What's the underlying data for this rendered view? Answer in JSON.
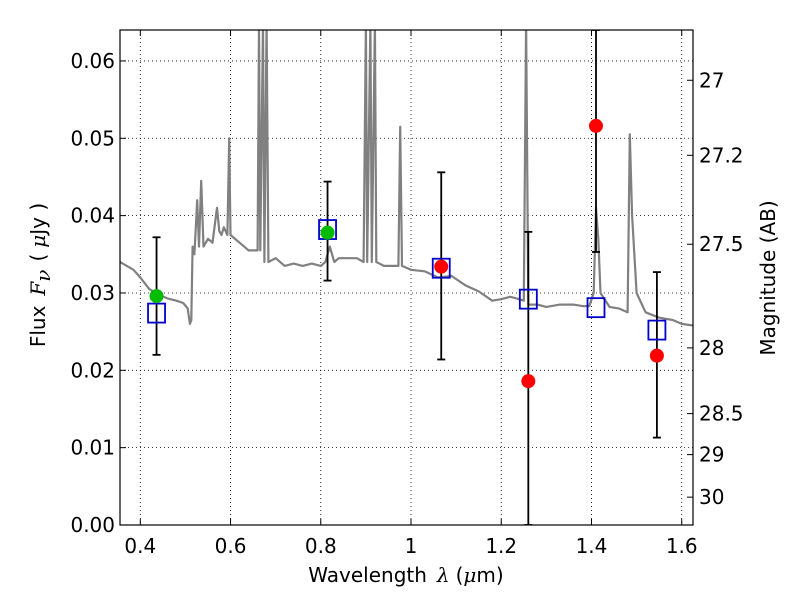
{
  "chart_data": {
    "type": "scatter",
    "xlabel_text": "Wavelength",
    "xlabel_symbol": "λ",
    "xlabel_unit_open": "(",
    "xlabel_unit_mu": "μ",
    "xlabel_unit_rest": "m)",
    "ylabel_text": "Flux",
    "ylabel_symbol": "F",
    "ylabel_subscript": "ν",
    "ylabel_unit_open": "(",
    "ylabel_unit_mu": "μ",
    "ylabel_unit_rest": "Jy )",
    "y2label": "Magnitude (AB)",
    "xlim": [
      0.355,
      1.625
    ],
    "ylim": [
      0.0,
      0.064
    ],
    "grid": true,
    "x_ticks": [
      0.4,
      0.6,
      0.8,
      1.0,
      1.2,
      1.4,
      1.6
    ],
    "x_tick_labels": [
      "0.4",
      "0.6",
      "0.8",
      "1",
      "1.2",
      "1.4",
      "1.6"
    ],
    "y_ticks": [
      0.0,
      0.01,
      0.02,
      0.03,
      0.04,
      0.05,
      0.06
    ],
    "y_tick_labels": [
      "0.00",
      "0.01",
      "0.02",
      "0.03",
      "0.04",
      "0.05",
      "0.06"
    ],
    "y2_ticks": [
      {
        "mag": 27,
        "label": "27",
        "flux": 0.0575
      },
      {
        "mag": 27.2,
        "label": "27.2",
        "flux": 0.0478
      },
      {
        "mag": 27.5,
        "label": "27.5",
        "flux": 0.0363
      },
      {
        "mag": 28,
        "label": "28",
        "flux": 0.0229
      },
      {
        "mag": 28.5,
        "label": "28.5",
        "flux": 0.0144
      },
      {
        "mag": 29,
        "label": "29",
        "flux": 0.0091
      },
      {
        "mag": 30,
        "label": "30",
        "flux": 0.0036
      }
    ],
    "colors": {
      "model": "#808080",
      "model_photometry": "#0000cc",
      "detections": "#00bb00",
      "measurements": "#ff0000",
      "errorbar": "#000000"
    },
    "series": [
      {
        "name": "model spectrum",
        "kind": "line",
        "points": [
          [
            0.355,
            0.034
          ],
          [
            0.37,
            0.0335
          ],
          [
            0.385,
            0.033
          ],
          [
            0.4,
            0.032
          ],
          [
            0.42,
            0.0305
          ],
          [
            0.44,
            0.0298
          ],
          [
            0.46,
            0.0293
          ],
          [
            0.48,
            0.029
          ],
          [
            0.495,
            0.0287
          ],
          [
            0.505,
            0.028
          ],
          [
            0.51,
            0.026
          ],
          [
            0.513,
            0.0265
          ],
          [
            0.516,
            0.036
          ],
          [
            0.52,
            0.035
          ],
          [
            0.526,
            0.042
          ],
          [
            0.53,
            0.036
          ],
          [
            0.535,
            0.0445
          ],
          [
            0.54,
            0.036
          ],
          [
            0.55,
            0.037
          ],
          [
            0.56,
            0.0365
          ],
          [
            0.57,
            0.041
          ],
          [
            0.575,
            0.038
          ],
          [
            0.58,
            0.0375
          ],
          [
            0.585,
            0.0385
          ],
          [
            0.593,
            0.0375
          ],
          [
            0.597,
            0.05
          ],
          [
            0.6,
            0.0375
          ],
          [
            0.62,
            0.0365
          ],
          [
            0.64,
            0.0355
          ],
          [
            0.66,
            0.0355
          ],
          [
            0.663,
            0.065
          ],
          [
            0.666,
            0.0355
          ],
          [
            0.672,
            0.065
          ],
          [
            0.675,
            0.034
          ],
          [
            0.68,
            0.065
          ],
          [
            0.684,
            0.034
          ],
          [
            0.7,
            0.0345
          ],
          [
            0.72,
            0.0335
          ],
          [
            0.74,
            0.0338
          ],
          [
            0.76,
            0.0335
          ],
          [
            0.78,
            0.0338
          ],
          [
            0.8,
            0.0335
          ],
          [
            0.81,
            0.034
          ],
          [
            0.82,
            0.036
          ],
          [
            0.83,
            0.034
          ],
          [
            0.84,
            0.0345
          ],
          [
            0.86,
            0.0345
          ],
          [
            0.88,
            0.0345
          ],
          [
            0.895,
            0.034
          ],
          [
            0.9,
            0.065
          ],
          [
            0.903,
            0.034
          ],
          [
            0.91,
            0.065
          ],
          [
            0.913,
            0.034
          ],
          [
            0.92,
            0.065
          ],
          [
            0.923,
            0.034
          ],
          [
            0.94,
            0.0335
          ],
          [
            0.96,
            0.0335
          ],
          [
            0.972,
            0.0335
          ],
          [
            0.976,
            0.0515
          ],
          [
            0.98,
            0.0335
          ],
          [
            1.0,
            0.033
          ],
          [
            1.03,
            0.0328
          ],
          [
            1.06,
            0.032
          ],
          [
            1.09,
            0.0322
          ],
          [
            1.12,
            0.031
          ],
          [
            1.15,
            0.0302
          ],
          [
            1.18,
            0.029
          ],
          [
            1.2,
            0.0292
          ],
          [
            1.22,
            0.0295
          ],
          [
            1.24,
            0.0292
          ],
          [
            1.25,
            0.029
          ],
          [
            1.255,
            0.065
          ],
          [
            1.26,
            0.0285
          ],
          [
            1.28,
            0.0285
          ],
          [
            1.3,
            0.0282
          ],
          [
            1.33,
            0.0285
          ],
          [
            1.36,
            0.0285
          ],
          [
            1.38,
            0.0283
          ],
          [
            1.395,
            0.0283
          ],
          [
            1.405,
            0.03
          ],
          [
            1.41,
            0.041
          ],
          [
            1.415,
            0.037
          ],
          [
            1.42,
            0.03
          ],
          [
            1.44,
            0.0282
          ],
          [
            1.46,
            0.028
          ],
          [
            1.48,
            0.0275
          ],
          [
            1.485,
            0.0505
          ],
          [
            1.49,
            0.04
          ],
          [
            1.5,
            0.03
          ],
          [
            1.52,
            0.0275
          ],
          [
            1.55,
            0.0268
          ],
          [
            1.58,
            0.0265
          ],
          [
            1.6,
            0.026
          ],
          [
            1.625,
            0.0258
          ]
        ]
      },
      {
        "name": "model photometry",
        "kind": "open-square",
        "points": [
          {
            "x": 0.436,
            "y": 0.0274
          },
          {
            "x": 0.815,
            "y": 0.0382
          },
          {
            "x": 1.067,
            "y": 0.0332
          },
          {
            "x": 1.26,
            "y": 0.0292
          },
          {
            "x": 1.41,
            "y": 0.0281
          },
          {
            "x": 1.545,
            "y": 0.0252
          }
        ]
      },
      {
        "name": "detections",
        "kind": "filled-circle",
        "points": [
          {
            "x": 0.436,
            "y": 0.0296,
            "ylo": 0.022,
            "yhi": 0.0372
          },
          {
            "x": 0.815,
            "y": 0.0378,
            "ylo": 0.0316,
            "yhi": 0.0444
          }
        ]
      },
      {
        "name": "measurements",
        "kind": "filled-circle",
        "points": [
          {
            "x": 1.067,
            "y": 0.0334,
            "ylo": 0.0214,
            "yhi": 0.0456
          },
          {
            "x": 1.26,
            "y": 0.0186,
            "ylo": 0.0,
            "yhi": 0.0379
          },
          {
            "x": 1.41,
            "y": 0.0516,
            "ylo": 0.0353,
            "yhi": 0.064
          },
          {
            "x": 1.545,
            "y": 0.0219,
            "ylo": 0.0113,
            "yhi": 0.0327
          }
        ]
      }
    ]
  }
}
